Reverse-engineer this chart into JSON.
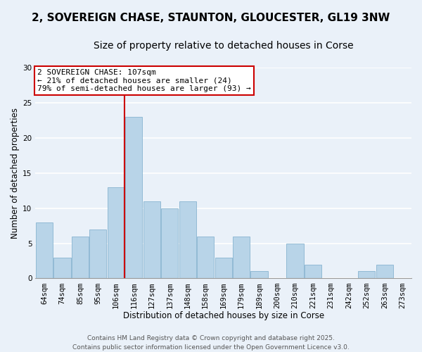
{
  "title_line1": "2, SOVEREIGN CHASE, STAUNTON, GLOUCESTER, GL19 3NW",
  "title_line2": "Size of property relative to detached houses in Corse",
  "xlabel": "Distribution of detached houses by size in Corse",
  "ylabel": "Number of detached properties",
  "bar_labels": [
    "64sqm",
    "74sqm",
    "85sqm",
    "95sqm",
    "106sqm",
    "116sqm",
    "127sqm",
    "137sqm",
    "148sqm",
    "158sqm",
    "169sqm",
    "179sqm",
    "189sqm",
    "200sqm",
    "210sqm",
    "221sqm",
    "231sqm",
    "242sqm",
    "252sqm",
    "263sqm",
    "273sqm"
  ],
  "bar_values": [
    8,
    3,
    6,
    7,
    13,
    23,
    11,
    10,
    11,
    6,
    3,
    6,
    1,
    0,
    5,
    2,
    0,
    0,
    1,
    2,
    0
  ],
  "bar_color": "#b8d4e8",
  "bar_edgecolor": "#88b4d0",
  "ylim": [
    0,
    30
  ],
  "yticks": [
    0,
    5,
    10,
    15,
    20,
    25,
    30
  ],
  "vline_color": "#cc0000",
  "annotation_title": "2 SOVEREIGN CHASE: 107sqm",
  "annotation_line2": "← 21% of detached houses are smaller (24)",
  "annotation_line3": "79% of semi-detached houses are larger (93) →",
  "footer_line1": "Contains HM Land Registry data © Crown copyright and database right 2025.",
  "footer_line2": "Contains public sector information licensed under the Open Government Licence v3.0.",
  "background_color": "#eaf1f9",
  "plot_background": "#eaf1f9",
  "grid_color": "#ffffff",
  "title_fontsize": 11,
  "subtitle_fontsize": 10,
  "axis_label_fontsize": 8.5,
  "tick_fontsize": 7.5,
  "annotation_fontsize": 8,
  "footer_fontsize": 6.5
}
